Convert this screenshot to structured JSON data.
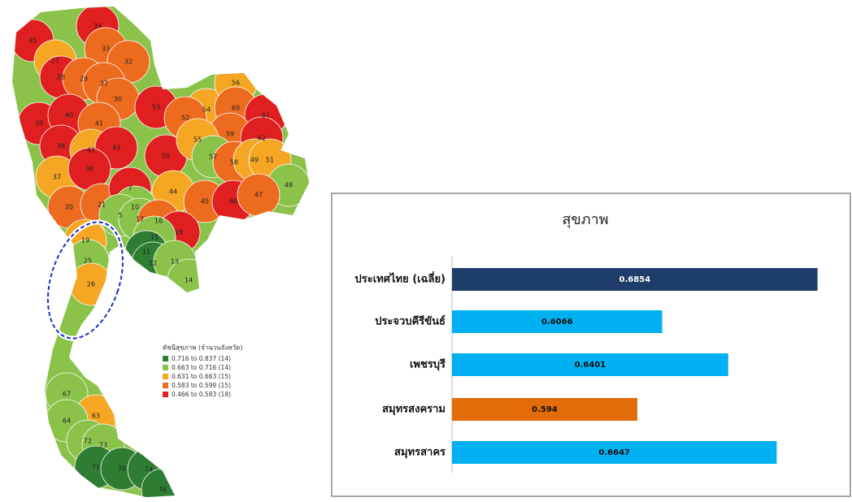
{
  "map": {
    "legend": {
      "title": "ดัชนีสุขภาพ (จำนวนจังหวัด)",
      "items": [
        {
          "label": "0.716 to 0.837 (14)",
          "color": "#2e7d32"
        },
        {
          "label": "0.663 to 0.716 (14)",
          "color": "#8bc34a"
        },
        {
          "label": "0.631 to 0.663 (15)",
          "color": "#f5a623"
        },
        {
          "label": "0.583 to 0.599 (15)",
          "color": "#ec6b1e"
        },
        {
          "label": "0.466 to 0.583 (18)",
          "color": "#e02020"
        }
      ]
    },
    "provinces": [
      {
        "label": "35",
        "class": 4
      },
      {
        "label": "34",
        "class": 4
      },
      {
        "label": "27",
        "class": 2
      },
      {
        "label": "33",
        "class": 3
      },
      {
        "label": "32",
        "class": 3
      },
      {
        "label": "28",
        "class": 4
      },
      {
        "label": "29",
        "class": 3
      },
      {
        "label": "37",
        "class": 3
      },
      {
        "label": "30",
        "class": 3
      },
      {
        "label": "39",
        "class": 4
      },
      {
        "label": "40",
        "class": 4
      },
      {
        "label": "41",
        "class": 3
      },
      {
        "label": "53",
        "class": 4
      },
      {
        "label": "54",
        "class": 2
      },
      {
        "label": "56",
        "class": 2
      },
      {
        "label": "60",
        "class": 3
      },
      {
        "label": "61",
        "class": 4
      },
      {
        "label": "52",
        "class": 3
      },
      {
        "label": "59",
        "class": 3
      },
      {
        "label": "62",
        "class": 4
      },
      {
        "label": "38",
        "class": 4
      },
      {
        "label": "42",
        "class": 2
      },
      {
        "label": "43",
        "class": 4
      },
      {
        "label": "50",
        "class": 4
      },
      {
        "label": "55",
        "class": 2
      },
      {
        "label": "57",
        "class": 1
      },
      {
        "label": "58",
        "class": 3
      },
      {
        "label": "49",
        "class": 2
      },
      {
        "label": "51",
        "class": 2
      },
      {
        "label": "48",
        "class": 1
      },
      {
        "label": "37",
        "class": 2
      },
      {
        "label": "36",
        "class": 4
      },
      {
        "label": "44",
        "class": 2
      },
      {
        "label": "45",
        "class": 3
      },
      {
        "label": "46",
        "class": 4
      },
      {
        "label": "47",
        "class": 3
      },
      {
        "label": "20",
        "class": 3
      },
      {
        "label": "21",
        "class": 3
      },
      {
        "label": "7",
        "class": 4
      },
      {
        "label": "10",
        "class": 1
      },
      {
        "label": "5",
        "class": 1
      },
      {
        "label": "17",
        "class": 1
      },
      {
        "label": "16",
        "class": 3
      },
      {
        "label": "18",
        "class": 4
      },
      {
        "label": "19",
        "class": 2
      },
      {
        "label": "15",
        "class": 1
      },
      {
        "label": "11",
        "class": 0
      },
      {
        "label": "12",
        "class": 0
      },
      {
        "label": "13",
        "class": 1
      },
      {
        "label": "14",
        "class": 1
      },
      {
        "label": "25",
        "class": 1
      },
      {
        "label": "26",
        "class": 2
      },
      {
        "label": "67",
        "class": 1
      },
      {
        "label": "63",
        "class": 2
      },
      {
        "label": "64",
        "class": 1
      },
      {
        "label": "72",
        "class": 1
      },
      {
        "label": "73",
        "class": 1
      },
      {
        "label": "71",
        "class": 0
      },
      {
        "label": "70",
        "class": 0
      },
      {
        "label": "74",
        "class": 0
      },
      {
        "label": "76",
        "class": 0
      }
    ]
  },
  "chart_data": {
    "type": "barh",
    "title": "สุขภาพ",
    "categories": [
      "ประเทศไทย (เฉลี่ย)",
      "ประจวบคีรีขันธ์",
      "เพชรบุรี",
      "สมุทรสงคราม",
      "สมุทรสาคร"
    ],
    "values": [
      0.6854,
      0.6066,
      0.6401,
      0.594,
      0.6647
    ],
    "colors": [
      "#1f3d6b",
      "#00b0f0",
      "#00b0f0",
      "#e36c0a",
      "#00b0f0"
    ],
    "xlim": [
      0.5,
      0.7
    ]
  }
}
